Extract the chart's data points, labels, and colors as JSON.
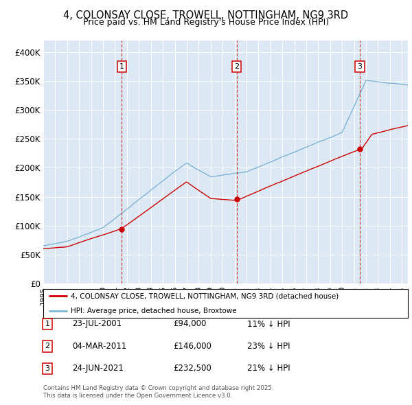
{
  "title": "4, COLONSAY CLOSE, TROWELL, NOTTINGHAM, NG9 3RD",
  "subtitle": "Price paid vs. HM Land Registry's House Price Index (HPI)",
  "background_color": "#dce9f5",
  "ylim": [
    0,
    420000
  ],
  "yticks": [
    0,
    50000,
    100000,
    150000,
    200000,
    250000,
    300000,
    350000,
    400000
  ],
  "ytick_labels": [
    "£0",
    "£50K",
    "£100K",
    "£150K",
    "£200K",
    "£250K",
    "£300K",
    "£350K",
    "£400K"
  ],
  "xlim_start": 1995.0,
  "xlim_end": 2025.5,
  "sale1": {
    "date_num": 2001.56,
    "price": 94000,
    "label": "1",
    "date_str": "23-JUL-2001",
    "pct": "11% ↓ HPI"
  },
  "sale2": {
    "date_num": 2011.17,
    "price": 146000,
    "label": "2",
    "date_str": "04-MAR-2011",
    "pct": "23% ↓ HPI"
  },
  "sale3": {
    "date_num": 2021.48,
    "price": 232500,
    "label": "3",
    "date_str": "24-JUN-2021",
    "pct": "21% ↓ HPI"
  },
  "legend1": "4, COLONSAY CLOSE, TROWELL, NOTTINGHAM, NG9 3RD (detached house)",
  "legend2": "HPI: Average price, detached house, Broxtowe",
  "footer1": "Contains HM Land Registry data © Crown copyright and database right 2025.",
  "footer2": "This data is licensed under the Open Government Licence v3.0.",
  "house_color": "#cc0000",
  "hpi_color": "#7fb3d3",
  "vline_color": "#cc2222",
  "dot_color": "#cc0000"
}
